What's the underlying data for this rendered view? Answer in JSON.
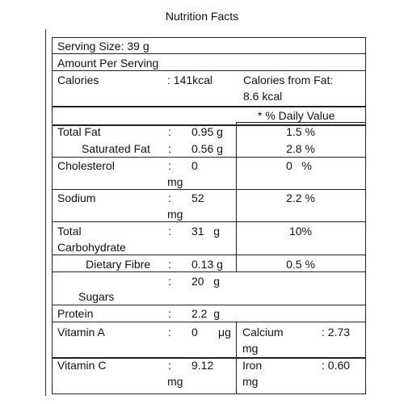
{
  "title": "Nutrition Facts",
  "serving_size": "Serving Size: 39 g",
  "amount_per_serving": "Amount Per Serving",
  "calories": {
    "label": "Calories",
    "value": ": 141kcal",
    "from_fat_line1": "Calories from Fat:",
    "from_fat_line2": "8.6 kcal"
  },
  "daily_value_header": "* % Daily Value",
  "sep": ":",
  "rows": {
    "total_fat": {
      "label": "Total Fat",
      "value": "0.95 g",
      "dv": "1.5 %"
    },
    "saturated_fat": {
      "label": "Saturated Fat",
      "value": "0.56 g",
      "dv": "2.8 %"
    },
    "cholesterol": {
      "label": "Cholesterol",
      "value": "0",
      "unit": "mg",
      "dv": "0   %"
    },
    "sodium": {
      "label": "Sodium",
      "value": "52",
      "unit": "mg",
      "dv": "2.2 %"
    },
    "total_carb": {
      "label_line1": "Total",
      "label_line2": "Carbohydrate",
      "value": "31   g",
      "dv": "10%"
    },
    "dietary_fibre": {
      "label": "Dietary Fibre",
      "value": "0.13 g",
      "dv": "0.5 %"
    },
    "sugars": {
      "label": "Sugars",
      "value": "20   g"
    },
    "protein": {
      "label": "Protein",
      "value": "2.2  g"
    }
  },
  "vitamins": {
    "vitamin_a": {
      "label": "Vitamin A",
      "value": "0",
      "unit": "μg"
    },
    "calcium": {
      "label": "Calcium",
      "value": ": 2.73",
      "unit": "mg"
    },
    "vitamin_c": {
      "label": "Vitamin C",
      "value": "9.12",
      "unit": "mg"
    },
    "iron": {
      "label": "Iron",
      "value": ": 0.60",
      "unit": "mg"
    }
  }
}
